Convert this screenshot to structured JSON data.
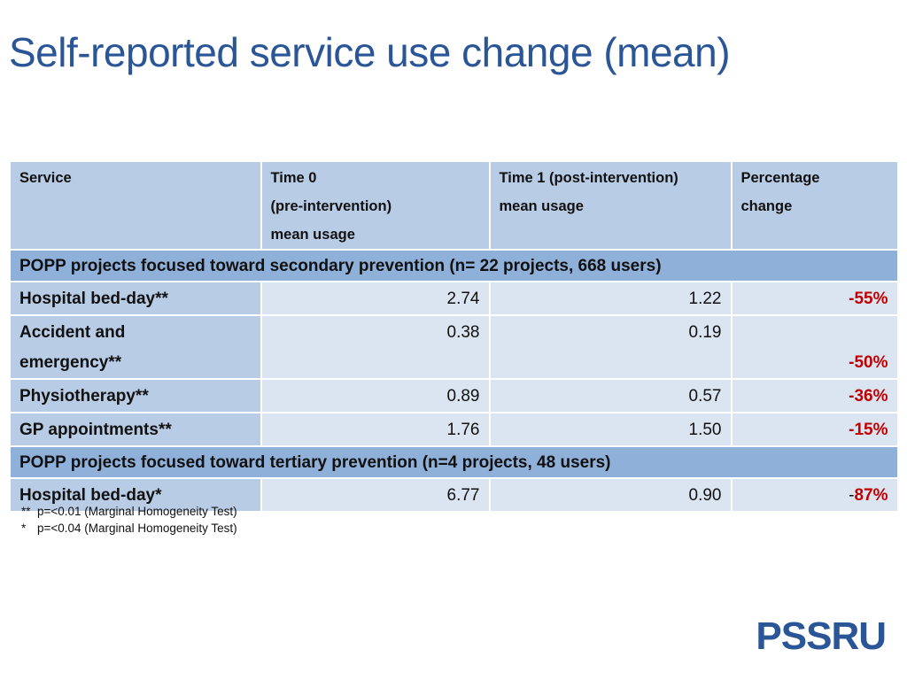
{
  "title": "Self-reported service use change (mean)",
  "table": {
    "headers": [
      [
        "Service"
      ],
      [
        "Time 0",
        "(pre-intervention)",
        "mean usage"
      ],
      [
        "Time 1 (post-intervention)",
        "mean usage"
      ],
      [
        "Percentage",
        "change"
      ]
    ],
    "sections": [
      {
        "label": "POPP projects focused toward secondary prevention (n= 22 projects, 668 users)",
        "rows": [
          {
            "service": "Hospital bed-day**",
            "t0": "2.74",
            "t1": "1.22",
            "change": "-55%"
          },
          {
            "service": "Accident and emergency**",
            "t0": "0.38",
            "t1": "0.19",
            "change": "-50%"
          },
          {
            "service": "Physiotherapy**",
            "t0": "0.89",
            "t1": "0.57",
            "change": "-36%"
          },
          {
            "service": "GP appointments**",
            "t0": "1.76",
            "t1": "1.50",
            "change": "-15%"
          }
        ]
      },
      {
        "label": "POPP projects focused toward tertiary prevention (n=4 projects, 48 users)",
        "rows": [
          {
            "service": "Hospital bed-day*",
            "t0": "6.77",
            "t1": "0.90",
            "change_prefix": "-",
            "change": "87%"
          }
        ]
      }
    ]
  },
  "notes": [
    {
      "marker": "**",
      "text": "p=<0.01 (Marginal Homogeneity Test)"
    },
    {
      "marker": "*",
      "text": "p=<0.04 (Marginal Homogeneity Test)"
    }
  ],
  "logo": "PSSRU",
  "colors": {
    "title": "#2a5596",
    "header": "#b9cce6",
    "section": "#8fb0d9",
    "cell": "#dbe4f1",
    "negative": "#c00000"
  }
}
